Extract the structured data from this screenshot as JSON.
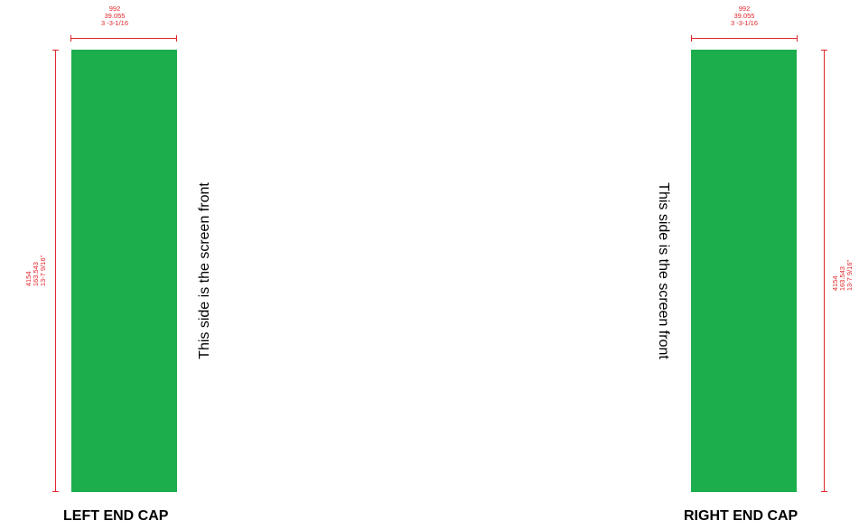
{
  "left": {
    "width_dim": [
      "992",
      "39.055",
      "3 -3-1/16"
    ],
    "height_dim": [
      "4154",
      "163.543",
      "13-7 9/16\""
    ],
    "note": "This side is the screen front",
    "caption": "LEFT END CAP"
  },
  "right": {
    "width_dim": [
      "992",
      "39.055",
      "3 -3-1/16"
    ],
    "height_dim": [
      "4154",
      "163.543",
      "13-7 9/16\""
    ],
    "note": "This side is the screen front",
    "caption": "RIGHT END CAP"
  },
  "colors": {
    "panel": "#1cae4c",
    "dimension": "#e0262b"
  }
}
